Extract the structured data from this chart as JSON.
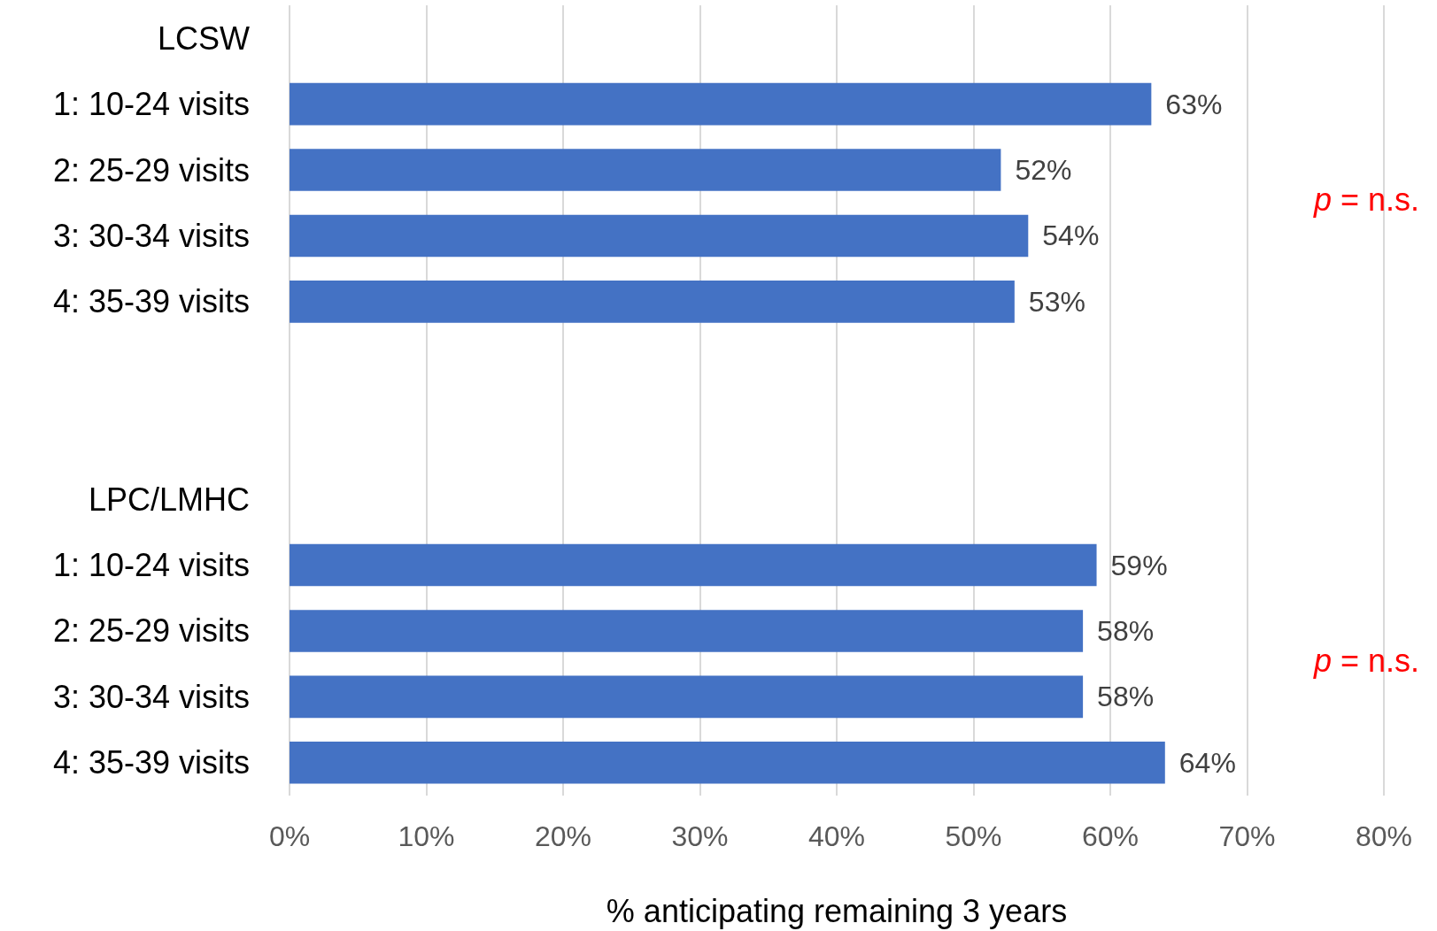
{
  "chart_data": {
    "type": "bar",
    "orientation": "horizontal",
    "xlabel": "% anticipating remaining 3 years",
    "categories": [
      "LCSW",
      "1: 10-24 visits",
      "2: 25-29 visits",
      "3: 30-34 visits",
      "4: 35-39 visits",
      null,
      null,
      "LPC/LMHC",
      "1: 10-24 visits",
      "2: 25-29 visits",
      "3: 30-34 visits",
      "4: 35-39 visits"
    ],
    "values": [
      null,
      63,
      52,
      54,
      53,
      null,
      null,
      null,
      59,
      58,
      58,
      64
    ],
    "value_labels": [
      null,
      "63%",
      "52%",
      "54%",
      "53%",
      null,
      null,
      null,
      "59%",
      "58%",
      "58%",
      "64%"
    ],
    "color": "#4472c4",
    "xlim": [
      0,
      80
    ],
    "xticks": [
      {
        "value": 0,
        "label": "0%"
      },
      {
        "value": 10,
        "label": "10%"
      },
      {
        "value": 20,
        "label": "20%"
      },
      {
        "value": 30,
        "label": "30%"
      },
      {
        "value": 40,
        "label": "40%"
      },
      {
        "value": 50,
        "label": "50%"
      },
      {
        "value": 60,
        "label": "60%"
      },
      {
        "value": 70,
        "label": "70%"
      },
      {
        "value": 80,
        "label": "80%"
      }
    ],
    "grid": "x",
    "annotations": [
      "p = n.s.",
      "p = n.s."
    ]
  }
}
